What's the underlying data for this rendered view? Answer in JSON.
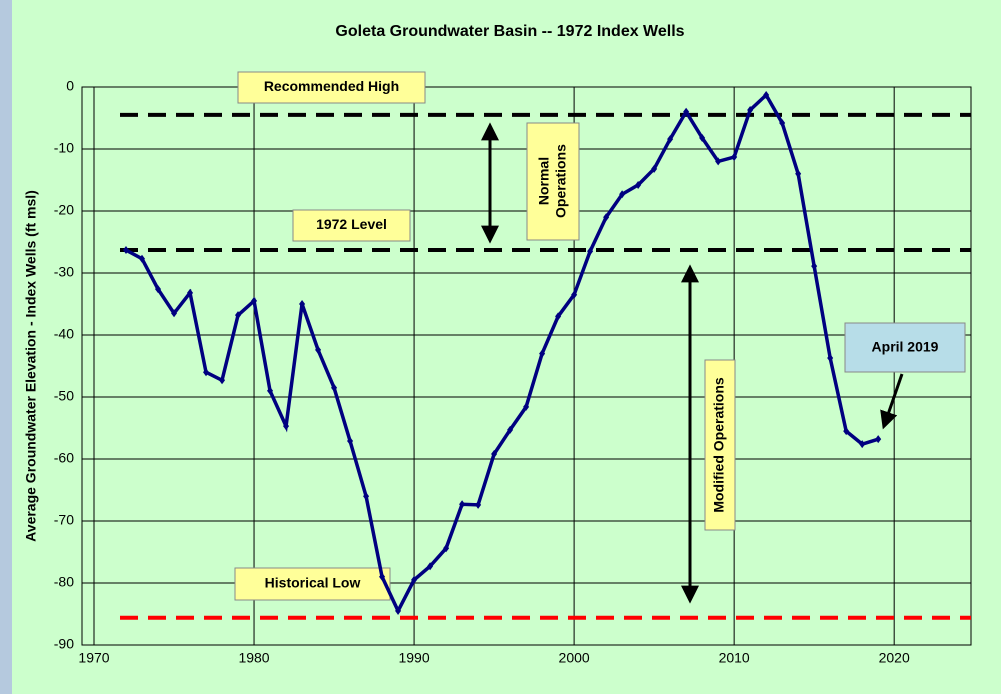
{
  "chart_data": {
    "type": "line",
    "title": "Goleta Groundwater Basin -- 1972 Index Wells",
    "y_label": "Average Groundwater Elevation - Index Wells (ft msl)",
    "x": [
      1972,
      1973,
      1974,
      1975,
      1976,
      1977,
      1978,
      1979,
      1980,
      1981,
      1982,
      1983,
      1984,
      1985,
      1986,
      1987,
      1988,
      1989,
      1990,
      1991,
      1992,
      1993,
      1994,
      1995,
      1996,
      1997,
      1998,
      1999,
      2000,
      2001,
      2002,
      2003,
      2004,
      2005,
      2006,
      2007,
      2008,
      2009,
      2010,
      2011,
      2012,
      2013,
      2014,
      2015,
      2016,
      2017,
      2018,
      2019
    ],
    "series": [
      {
        "color": "#000080",
        "values": [
          -26.3,
          -27.7,
          -32.6,
          -36.5,
          -33.2,
          -46,
          -47.3,
          -36.8,
          -34.5,
          -49,
          -54.7,
          -35,
          -42.4,
          -48.5,
          -57.1,
          -66,
          -79,
          -84.5,
          -79.5,
          -77.3,
          -74.4,
          -67.3,
          -67.4,
          -59.2,
          -55.3,
          -51.6,
          -43,
          -37,
          -33.5,
          -26.5,
          -21,
          -17.3,
          -15.8,
          -13.2,
          -8.4,
          -4,
          -8.2,
          -12,
          -11.3,
          -3.7,
          -1.3,
          -5.8,
          -14,
          -28.9,
          -43.7,
          -55.5,
          -57.6,
          -56.8
        ]
      }
    ],
    "xlim": [
      1969.25,
      2024.8
    ],
    "xticks": [
      1970,
      1980,
      1990,
      2000,
      2010,
      2020
    ],
    "ylim": [
      -90,
      0
    ],
    "yticks": [
      0,
      -10,
      -20,
      -30,
      -40,
      -50,
      -60,
      -70,
      -80,
      -90
    ],
    "grid": true,
    "reference_lines": [
      {
        "label": "Recommended High",
        "value": -4.5,
        "color": "#000000"
      },
      {
        "label": "1972 Level",
        "value": -26.3,
        "color": "#000000"
      },
      {
        "label": "Historical Low",
        "value": -85.6,
        "color": "#ff0000"
      }
    ],
    "annotations": {
      "normal": [
        "Normal",
        "Operations"
      ],
      "modified": "Modified Operations",
      "latest": "April 2019"
    }
  }
}
